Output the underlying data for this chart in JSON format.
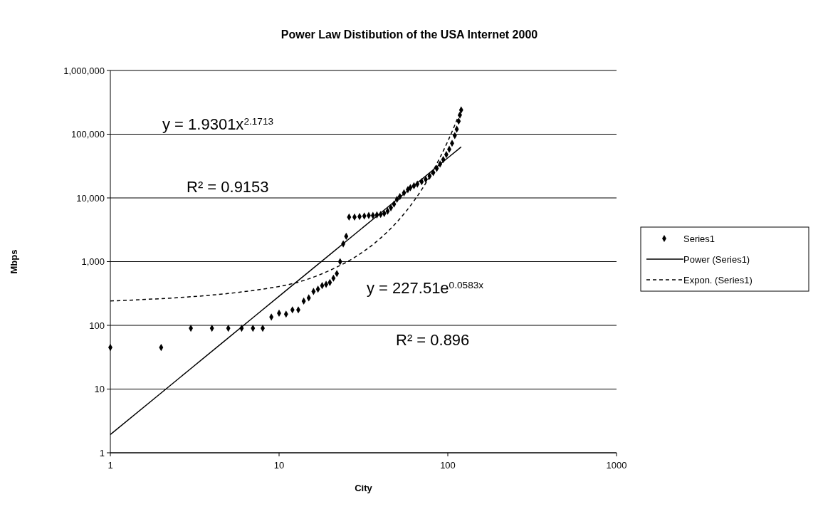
{
  "chart_data": {
    "type": "scatter",
    "title": "Power Law Distibution of the USA Internet 2000",
    "xlabel": "City",
    "ylabel": "Mbps",
    "log": "xy",
    "grid": "y",
    "legend": "right",
    "xlim": [
      1,
      1000
    ],
    "xticks": [
      1,
      10,
      100,
      1000
    ],
    "ylim": [
      1,
      1000000
    ],
    "yticks": [
      {
        "value": 1,
        "label": "1"
      },
      {
        "value": 10,
        "label": "10"
      },
      {
        "value": 100,
        "label": "100"
      },
      {
        "value": 1000,
        "label": "1,000"
      },
      {
        "value": 10000,
        "label": "10,000"
      },
      {
        "value": 100000,
        "label": "100,000"
      },
      {
        "value": 1000000,
        "label": "1,000,000"
      }
    ],
    "annotations": [
      "y = 1.9301x$^{2.1713}$",
      "R² = 0.9153",
      "y = 227.51e$^{0.0583x}$",
      "R² = 0.896"
    ],
    "series": [
      {
        "name": "Series1",
        "marker": "diamond",
        "color": "#000000",
        "x": [
          1,
          2,
          3,
          4,
          5,
          6,
          7,
          8,
          9,
          10,
          11,
          12,
          13,
          14,
          15,
          16,
          17,
          18,
          19,
          20,
          21,
          22,
          23,
          24,
          25,
          26,
          28,
          30,
          32,
          34,
          36,
          38,
          40,
          42,
          44,
          46,
          48,
          50,
          52,
          55,
          58,
          60,
          63,
          66,
          70,
          74,
          78,
          82,
          86,
          90,
          94,
          98,
          102,
          106,
          110,
          113,
          116,
          118,
          120
        ],
        "values": [
          45,
          45,
          90,
          90,
          90,
          90,
          90,
          90,
          135,
          155,
          150,
          175,
          175,
          240,
          270,
          340,
          370,
          420,
          440,
          470,
          550,
          650,
          1000,
          1900,
          2500,
          5000,
          5000,
          5100,
          5200,
          5300,
          5300,
          5400,
          5500,
          5700,
          6200,
          7000,
          8000,
          9500,
          10500,
          12000,
          13500,
          14500,
          15500,
          16500,
          18000,
          19500,
          22000,
          25000,
          29000,
          34000,
          40000,
          48000,
          58000,
          72000,
          95000,
          120000,
          160000,
          200000,
          240000
        ]
      },
      {
        "name": "Power (Series1)",
        "type": "line",
        "line_style": "solid",
        "color": "#000000",
        "x": [
          1,
          2,
          5,
          10,
          20,
          50,
          100,
          120
        ],
        "values": [
          1.93,
          8.69,
          63.6,
          286,
          1289,
          9427,
          42468,
          63115
        ]
      },
      {
        "name": "Expon. (Series1)",
        "type": "line",
        "line_style": "dashed",
        "color": "#000000",
        "x": [
          1,
          10,
          20,
          30,
          40,
          50,
          60,
          70,
          80,
          90,
          100,
          110,
          120
        ],
        "values": [
          241,
          407,
          730,
          1308,
          2343,
          4198,
          7519,
          13470,
          24135,
          43230,
          77440,
          138760,
          248560
        ]
      }
    ]
  }
}
